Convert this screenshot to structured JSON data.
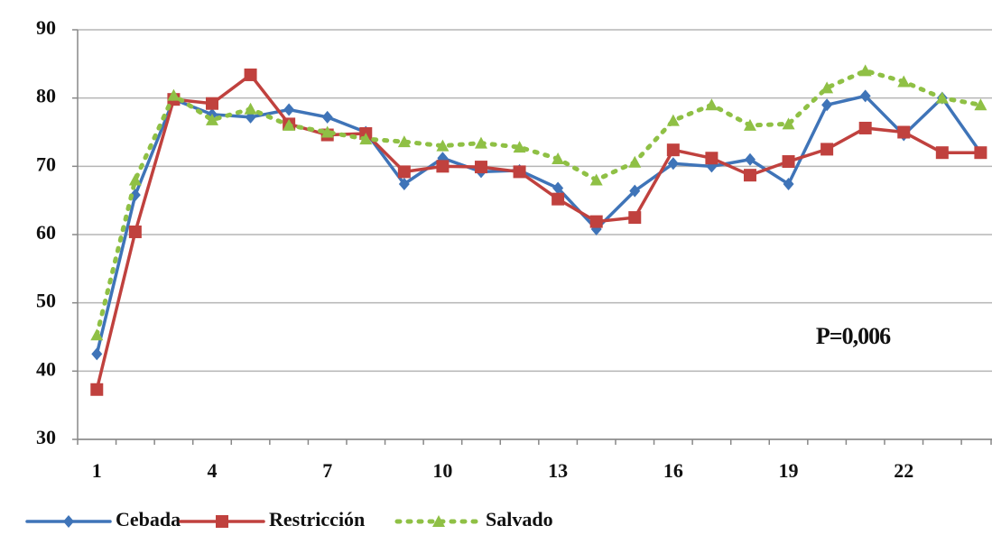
{
  "chart_data": {
    "type": "line",
    "annotation": "P=0,006",
    "categories": [
      "1",
      null,
      null,
      "4",
      null,
      null,
      "7",
      null,
      null,
      "10",
      null,
      null,
      "13",
      null,
      null,
      "16",
      null,
      null,
      "19",
      null,
      null,
      "22",
      null,
      null
    ],
    "series": [
      {
        "name": "Cebada",
        "color": "#3f74b8",
        "marker": "diamond",
        "dash": false,
        "values": [
          42.5,
          65.8,
          79.8,
          77.6,
          77.2,
          78.3,
          77.2,
          75,
          67.4,
          71.2,
          69.2,
          69.4,
          66.8,
          60.8,
          66.4,
          70.4,
          70,
          71,
          67.4,
          79,
          80.3,
          74.6,
          80,
          72
        ]
      },
      {
        "name": "Restricción",
        "color": "#c0413e",
        "marker": "square",
        "dash": false,
        "values": [
          37.3,
          60.4,
          79.8,
          79.2,
          83.4,
          76.2,
          74.6,
          74.8,
          69.2,
          70,
          69.9,
          69.2,
          65.2,
          61.9,
          62.5,
          72.4,
          71.2,
          68.7,
          70.7,
          72.5,
          75.6,
          75,
          72,
          72
        ]
      },
      {
        "name": "Salvado",
        "color": "#8fc045",
        "marker": "triangle",
        "dash": true,
        "values": [
          45.3,
          68,
          80.4,
          76.8,
          78.4,
          76,
          75,
          74,
          73.6,
          73,
          73.4,
          72.8,
          71.1,
          68,
          70.6,
          76.7,
          79,
          76,
          76.2,
          81.5,
          84,
          82.4,
          80,
          79
        ]
      }
    ],
    "ylim": [
      30,
      90
    ],
    "yticks": [
      30,
      40,
      50,
      60,
      70,
      80,
      90
    ],
    "grid": true,
    "legend": "bottom"
  }
}
